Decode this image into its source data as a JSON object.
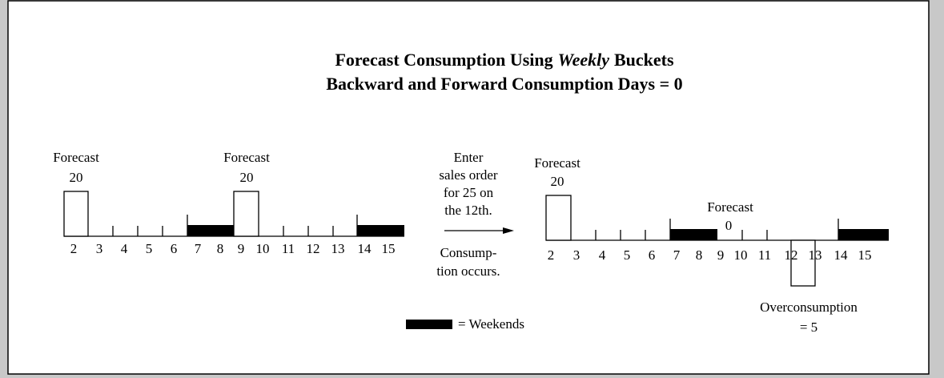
{
  "header": {
    "title_line1": [
      "Forecast Consumption Using",
      "Weekly",
      "Buckets"
    ],
    "title_line2": "Backward and Forward Consumption Days = 0"
  },
  "days": [
    "2",
    "3",
    "4",
    "5",
    "6",
    "7",
    "8",
    "9",
    "10",
    "11",
    "12",
    "13",
    "14",
    "15"
  ],
  "before": {
    "forecast_1": [
      "Forecast",
      "20"
    ],
    "forecast_2": [
      "Forecast",
      "20"
    ]
  },
  "action": {
    "enter": [
      "Enter",
      "sales order",
      "for 25 on",
      "the 12th."
    ],
    "result": [
      "Consump-",
      "tion occurs."
    ]
  },
  "after": {
    "forecast_1": [
      "Forecast",
      "20"
    ],
    "forecast_2": [
      "Forecast",
      "0"
    ],
    "overconsumption": [
      "Overconsumption",
      "= 5"
    ]
  },
  "legend": "= Weekends"
}
